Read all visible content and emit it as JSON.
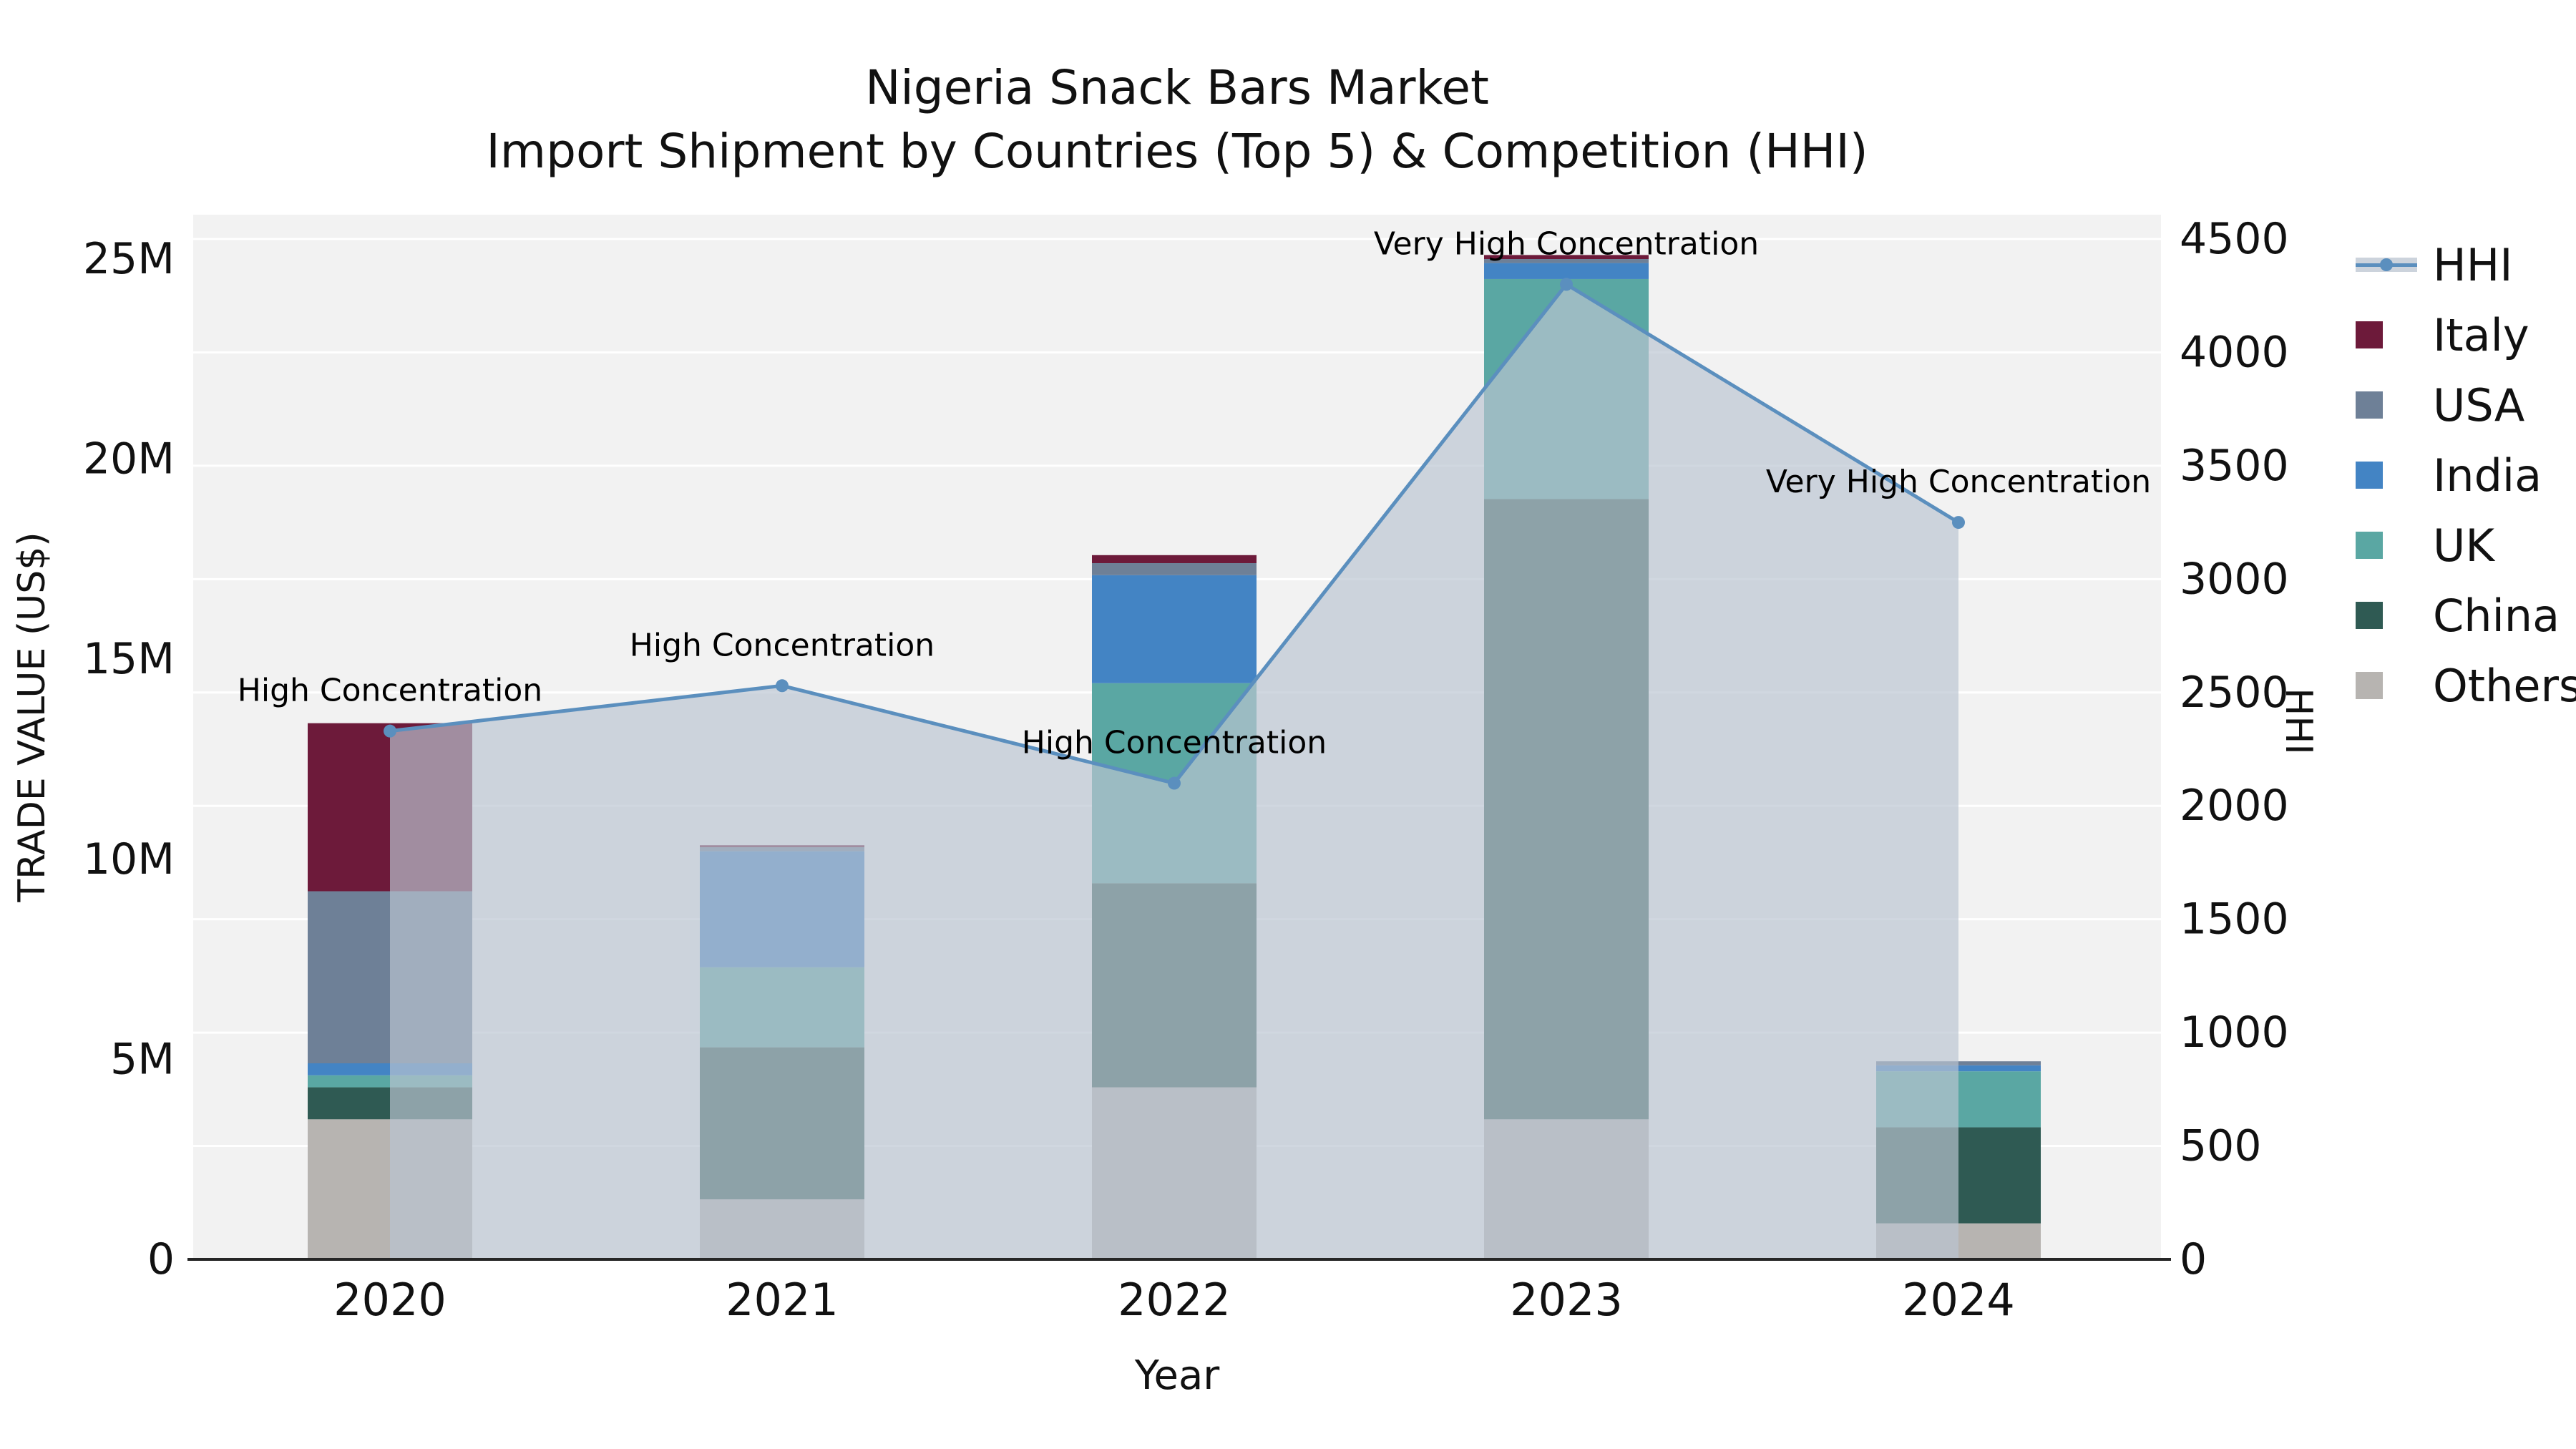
{
  "title_line1": "Nigeria Snack Bars Market",
  "title_line2": "Import Shipment by Countries (Top 5) & Competition (HHI)",
  "chart_data": {
    "type": "stacked-bar+line",
    "x": [
      "2020",
      "2021",
      "2022",
      "2023",
      "2024"
    ],
    "xlabel": "Year",
    "bar_series": [
      {
        "name": "Others",
        "color": "#b7b4b1",
        "values_musd": [
          3.5,
          1.5,
          4.3,
          3.5,
          0.9
        ]
      },
      {
        "name": "China",
        "color": "#2f5a53",
        "values_musd": [
          0.8,
          3.8,
          5.1,
          15.5,
          2.4
        ]
      },
      {
        "name": "UK",
        "color": "#5aa7a3",
        "values_musd": [
          0.3,
          2.0,
          5.0,
          5.5,
          1.4
        ]
      },
      {
        "name": "India",
        "color": "#4384c4",
        "values_musd": [
          0.3,
          2.9,
          2.7,
          0.4,
          0.15
        ]
      },
      {
        "name": "USA",
        "color": "#6e8097",
        "values_musd": [
          4.3,
          0.1,
          0.3,
          0.1,
          0.1
        ]
      },
      {
        "name": "Italy",
        "color": "#6d1a3a",
        "values_musd": [
          4.2,
          0.05,
          0.2,
          0.1,
          0
        ]
      }
    ],
    "line_series": {
      "name": "HHI",
      "color": "#5b8fbe",
      "area_color": "#bac4d1",
      "values": [
        2330,
        2530,
        2100,
        4300,
        3250
      ],
      "point_labels": [
        "High Concentration",
        "High Concentration",
        "High Concentration",
        "Very High Concentration",
        "Very High Concentration"
      ]
    },
    "axes": {
      "left": {
        "label": "TRADE VALUE (US$)",
        "ticks": [
          "0",
          "5M",
          "10M",
          "15M",
          "20M",
          "25M"
        ],
        "tick_values_musd": [
          0,
          5,
          10,
          15,
          20,
          25
        ],
        "max_musd": 26.1
      },
      "right": {
        "label": "HHI",
        "ticks": [
          "0",
          "500",
          "1000",
          "1500",
          "2000",
          "2500",
          "3000",
          "3500",
          "4000",
          "4500"
        ],
        "tick_values": [
          0,
          500,
          1000,
          1500,
          2000,
          2500,
          3000,
          3500,
          4000,
          4500
        ],
        "max": 4500
      },
      "x": {
        "label": "Year"
      }
    },
    "legend": [
      "HHI",
      "Italy",
      "USA",
      "India",
      "UK",
      "China",
      "Others"
    ],
    "plot_bg": "#f2f2f2",
    "grid_color": "#ffffff"
  }
}
